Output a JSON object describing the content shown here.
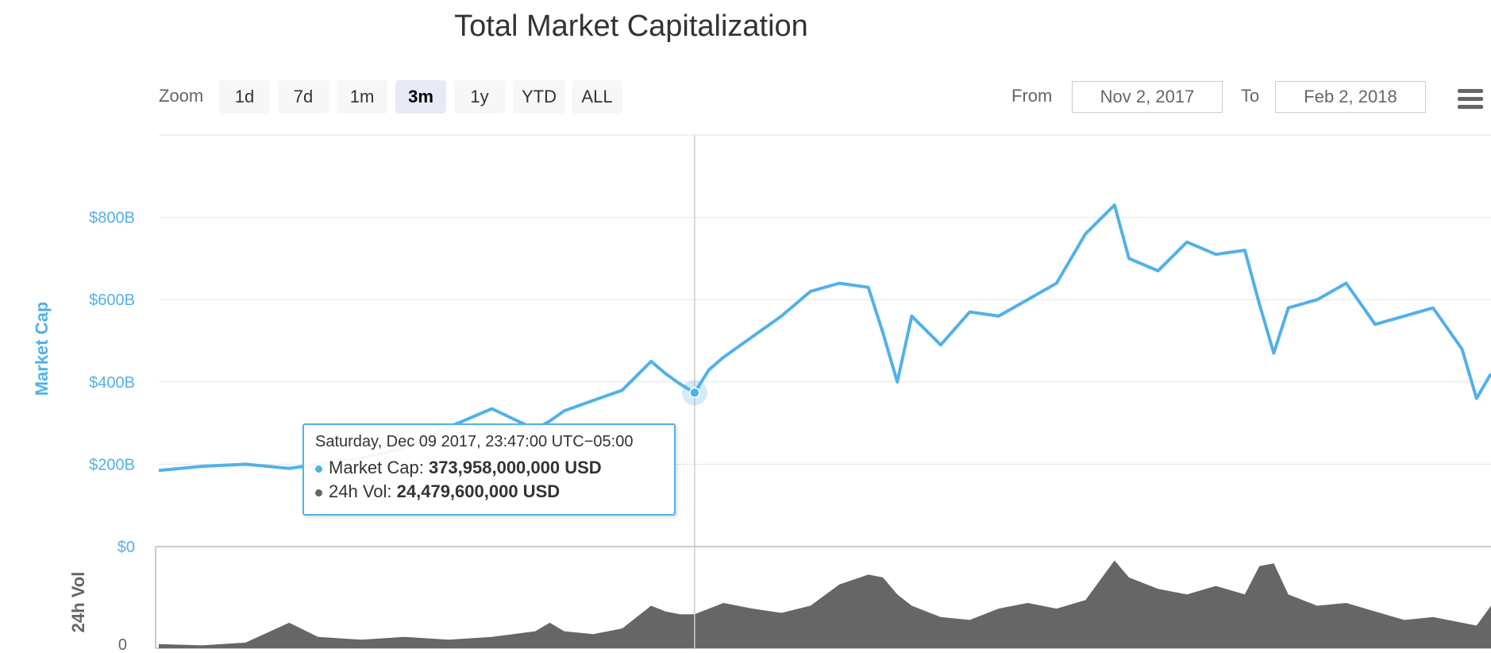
{
  "title": "Total Market Capitalization",
  "toolbar": {
    "zoom_label": "Zoom",
    "zoom_buttons": [
      "1d",
      "7d",
      "1m",
      "3m",
      "1y",
      "YTD",
      "ALL"
    ],
    "active_zoom": "3m",
    "from_label": "From",
    "from_value": "Nov 2, 2017",
    "to_label": "To",
    "to_value": "Feb 2, 2018",
    "menu_icon": "hamburger-menu-icon"
  },
  "tooltip": {
    "date": "Saturday, Dec 09 2017, 23:47:00 UTC−05:00",
    "market_cap_label": "Market Cap:",
    "market_cap_value": "373,958,000,000 USD",
    "vol_label": "24h Vol:",
    "vol_value": "24,479,600,000 USD",
    "market_cap_color": "#52b1e8",
    "vol_color": "#666666"
  },
  "chart_data": {
    "type": "line",
    "title": "Total Market Capitalization",
    "x_range": [
      "Nov 2, 2017",
      "Feb 2, 2018"
    ],
    "series": [
      {
        "name": "Market Cap",
        "color": "#52b1e8",
        "unit": "USD billions",
        "x": [
          "2017-11-02",
          "2017-11-05",
          "2017-11-08",
          "2017-11-11",
          "2017-11-13",
          "2017-11-16",
          "2017-11-19",
          "2017-11-22",
          "2017-11-25",
          "2017-11-28",
          "2017-11-29",
          "2017-11-30",
          "2017-12-02",
          "2017-12-04",
          "2017-12-06",
          "2017-12-07",
          "2017-12-08",
          "2017-12-09",
          "2017-12-10",
          "2017-12-11",
          "2017-12-13",
          "2017-12-15",
          "2017-12-17",
          "2017-12-19",
          "2017-12-21",
          "2017-12-22",
          "2017-12-23",
          "2017-12-24",
          "2017-12-26",
          "2017-12-28",
          "2017-12-30",
          "2018-01-01",
          "2018-01-03",
          "2018-01-05",
          "2018-01-07",
          "2018-01-08",
          "2018-01-10",
          "2018-01-12",
          "2018-01-14",
          "2018-01-16",
          "2018-01-17",
          "2018-01-18",
          "2018-01-19",
          "2018-01-21",
          "2018-01-23",
          "2018-01-25",
          "2018-01-27",
          "2018-01-29",
          "2018-01-31",
          "2018-02-01",
          "2018-02-02"
        ],
        "values": [
          185,
          195,
          200,
          190,
          200,
          215,
          240,
          290,
          335,
          285,
          305,
          330,
          355,
          380,
          450,
          420,
          395,
          374,
          430,
          460,
          510,
          560,
          620,
          640,
          630,
          520,
          400,
          560,
          490,
          570,
          560,
          600,
          640,
          760,
          830,
          700,
          670,
          740,
          710,
          720,
          590,
          470,
          580,
          600,
          640,
          540,
          560,
          580,
          480,
          360,
          420
        ]
      },
      {
        "name": "24h Vol",
        "color": "#666666",
        "unit": "USD billions",
        "x": [
          "2017-11-02",
          "2017-11-05",
          "2017-11-08",
          "2017-11-11",
          "2017-11-13",
          "2017-11-16",
          "2017-11-19",
          "2017-11-22",
          "2017-11-25",
          "2017-11-28",
          "2017-11-29",
          "2017-11-30",
          "2017-12-02",
          "2017-12-04",
          "2017-12-06",
          "2017-12-07",
          "2017-12-08",
          "2017-12-09",
          "2017-12-10",
          "2017-12-11",
          "2017-12-13",
          "2017-12-15",
          "2017-12-17",
          "2017-12-19",
          "2017-12-21",
          "2017-12-22",
          "2017-12-23",
          "2017-12-24",
          "2017-12-26",
          "2017-12-28",
          "2017-12-30",
          "2018-01-01",
          "2018-01-03",
          "2018-01-05",
          "2018-01-07",
          "2018-01-08",
          "2018-01-10",
          "2018-01-12",
          "2018-01-14",
          "2018-01-16",
          "2018-01-17",
          "2018-01-18",
          "2018-01-19",
          "2018-01-21",
          "2018-01-23",
          "2018-01-25",
          "2018-01-27",
          "2018-01-29",
          "2018-01-31",
          "2018-02-01",
          "2018-02-02"
        ],
        "values": [
          3,
          2,
          4,
          18,
          8,
          6,
          8,
          6,
          8,
          12,
          18,
          12,
          10,
          14,
          30,
          26,
          24,
          24,
          28,
          32,
          28,
          25,
          30,
          45,
          52,
          50,
          38,
          30,
          22,
          20,
          28,
          32,
          28,
          34,
          62,
          50,
          42,
          38,
          44,
          38,
          58,
          60,
          38,
          30,
          32,
          26,
          20,
          22,
          18,
          16,
          30
        ]
      }
    ],
    "y_axis": {
      "label": "Market Cap",
      "ylim": [
        0,
        1000
      ],
      "ticks": [
        0,
        200,
        400,
        600,
        800
      ],
      "tick_labels": [
        "$0",
        "$200B",
        "$400B",
        "$600B",
        "$800B"
      ]
    },
    "y_axis_2": {
      "label": "24h Vol",
      "tick_labels": [
        "0"
      ]
    },
    "crosshair_date": "2017-12-09",
    "grid": true,
    "legend": "none"
  }
}
